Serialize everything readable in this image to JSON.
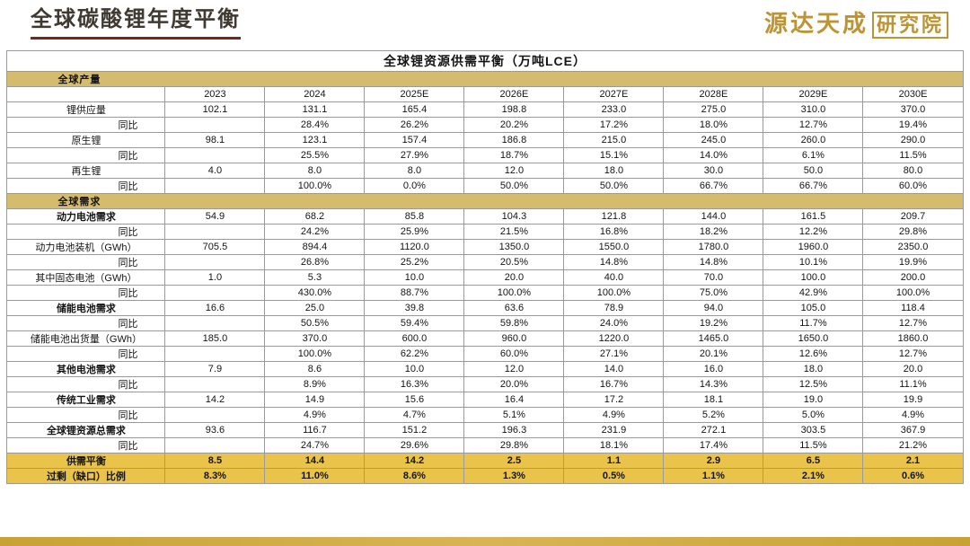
{
  "page": {
    "title": "全球碳酸锂年度平衡",
    "logo": {
      "main": "源达天成",
      "seal": "研究院"
    },
    "colors": {
      "title_underline": "#7b241c",
      "logo_gold": "#bd9334",
      "section_row_bg": "#d5bb6e",
      "balance_row_bg": "#e9c34a",
      "bottom_bar": "#c9a236"
    }
  },
  "table": {
    "title": "全球锂资源供需平衡（万吨LCE）",
    "col_headers": [
      "2023",
      "2024",
      "2025E",
      "2026E",
      "2027E",
      "2028E",
      "2029E",
      "2030E"
    ],
    "rows": [
      {
        "type": "section",
        "label": "全球产量"
      },
      {
        "type": "years",
        "label": "",
        "values": [
          "2023",
          "2024",
          "2025E",
          "2026E",
          "2027E",
          "2028E",
          "2029E",
          "2030E"
        ]
      },
      {
        "type": "data",
        "label": "锂供应量",
        "values": [
          "102.1",
          "131.1",
          "165.4",
          "198.8",
          "233.0",
          "275.0",
          "310.0",
          "370.0"
        ]
      },
      {
        "type": "yoy",
        "label": "同比",
        "values": [
          "",
          "28.4%",
          "26.2%",
          "20.2%",
          "17.2%",
          "18.0%",
          "12.7%",
          "19.4%"
        ]
      },
      {
        "type": "data",
        "label": "原生锂",
        "values": [
          "98.1",
          "123.1",
          "157.4",
          "186.8",
          "215.0",
          "245.0",
          "260.0",
          "290.0"
        ]
      },
      {
        "type": "yoy",
        "label": "同比",
        "values": [
          "",
          "25.5%",
          "27.9%",
          "18.7%",
          "15.1%",
          "14.0%",
          "6.1%",
          "11.5%"
        ]
      },
      {
        "type": "data",
        "label": "再生锂",
        "values": [
          "4.0",
          "8.0",
          "8.0",
          "12.0",
          "18.0",
          "30.0",
          "50.0",
          "80.0"
        ]
      },
      {
        "type": "yoy",
        "label": "同比",
        "values": [
          "",
          "100.0%",
          "0.0%",
          "50.0%",
          "50.0%",
          "66.7%",
          "66.7%",
          "60.0%"
        ]
      },
      {
        "type": "section",
        "label": "全球需求"
      },
      {
        "type": "data",
        "label": "动力电池需求",
        "bold": true,
        "values": [
          "54.9",
          "68.2",
          "85.8",
          "104.3",
          "121.8",
          "144.0",
          "161.5",
          "209.7"
        ]
      },
      {
        "type": "yoy",
        "label": "同比",
        "values": [
          "",
          "24.2%",
          "25.9%",
          "21.5%",
          "16.8%",
          "18.2%",
          "12.2%",
          "29.8%"
        ]
      },
      {
        "type": "data",
        "label": "动力电池装机（GWh）",
        "values": [
          "705.5",
          "894.4",
          "1120.0",
          "1350.0",
          "1550.0",
          "1780.0",
          "1960.0",
          "2350.0"
        ]
      },
      {
        "type": "yoy",
        "label": "同比",
        "values": [
          "",
          "26.8%",
          "25.2%",
          "20.5%",
          "14.8%",
          "14.8%",
          "10.1%",
          "19.9%"
        ]
      },
      {
        "type": "data",
        "label": "其中固态电池（GWh）",
        "values": [
          "1.0",
          "5.3",
          "10.0",
          "20.0",
          "40.0",
          "70.0",
          "100.0",
          "200.0"
        ]
      },
      {
        "type": "yoy",
        "label": "同比",
        "values": [
          "",
          "430.0%",
          "88.7%",
          "100.0%",
          "100.0%",
          "75.0%",
          "42.9%",
          "100.0%"
        ]
      },
      {
        "type": "data",
        "label": "储能电池需求",
        "bold": true,
        "values": [
          "16.6",
          "25.0",
          "39.8",
          "63.6",
          "78.9",
          "94.0",
          "105.0",
          "118.4"
        ]
      },
      {
        "type": "yoy",
        "label": "同比",
        "values": [
          "",
          "50.5%",
          "59.4%",
          "59.8%",
          "24.0%",
          "19.2%",
          "11.7%",
          "12.7%"
        ]
      },
      {
        "type": "data",
        "label": "储能电池出货量（GWh）",
        "values": [
          "185.0",
          "370.0",
          "600.0",
          "960.0",
          "1220.0",
          "1465.0",
          "1650.0",
          "1860.0"
        ]
      },
      {
        "type": "yoy",
        "label": "同比",
        "values": [
          "",
          "100.0%",
          "62.2%",
          "60.0%",
          "27.1%",
          "20.1%",
          "12.6%",
          "12.7%"
        ]
      },
      {
        "type": "data",
        "label": "其他电池需求",
        "bold": true,
        "values": [
          "7.9",
          "8.6",
          "10.0",
          "12.0",
          "14.0",
          "16.0",
          "18.0",
          "20.0"
        ]
      },
      {
        "type": "yoy",
        "label": "同比",
        "values": [
          "",
          "8.9%",
          "16.3%",
          "20.0%",
          "16.7%",
          "14.3%",
          "12.5%",
          "11.1%"
        ]
      },
      {
        "type": "data",
        "label": "传统工业需求",
        "bold": true,
        "values": [
          "14.2",
          "14.9",
          "15.6",
          "16.4",
          "17.2",
          "18.1",
          "19.0",
          "19.9"
        ]
      },
      {
        "type": "yoy",
        "label": "同比",
        "values": [
          "",
          "4.9%",
          "4.7%",
          "5.1%",
          "4.9%",
          "5.2%",
          "5.0%",
          "4.9%"
        ]
      },
      {
        "type": "data",
        "label": "全球锂资源总需求",
        "bold": true,
        "values": [
          "93.6",
          "116.7",
          "151.2",
          "196.3",
          "231.9",
          "272.1",
          "303.5",
          "367.9"
        ]
      },
      {
        "type": "yoy",
        "label": "同比",
        "values": [
          "",
          "24.7%",
          "29.6%",
          "29.8%",
          "18.1%",
          "17.4%",
          "11.5%",
          "21.2%"
        ]
      },
      {
        "type": "balance",
        "label": "供需平衡",
        "values": [
          "8.5",
          "14.4",
          "14.2",
          "2.5",
          "1.1",
          "2.9",
          "6.5",
          "2.1"
        ]
      },
      {
        "type": "balance",
        "label": "过剩（缺口）比例",
        "values": [
          "8.3%",
          "11.0%",
          "8.6%",
          "1.3%",
          "0.5%",
          "1.1%",
          "2.1%",
          "0.6%"
        ]
      }
    ]
  }
}
